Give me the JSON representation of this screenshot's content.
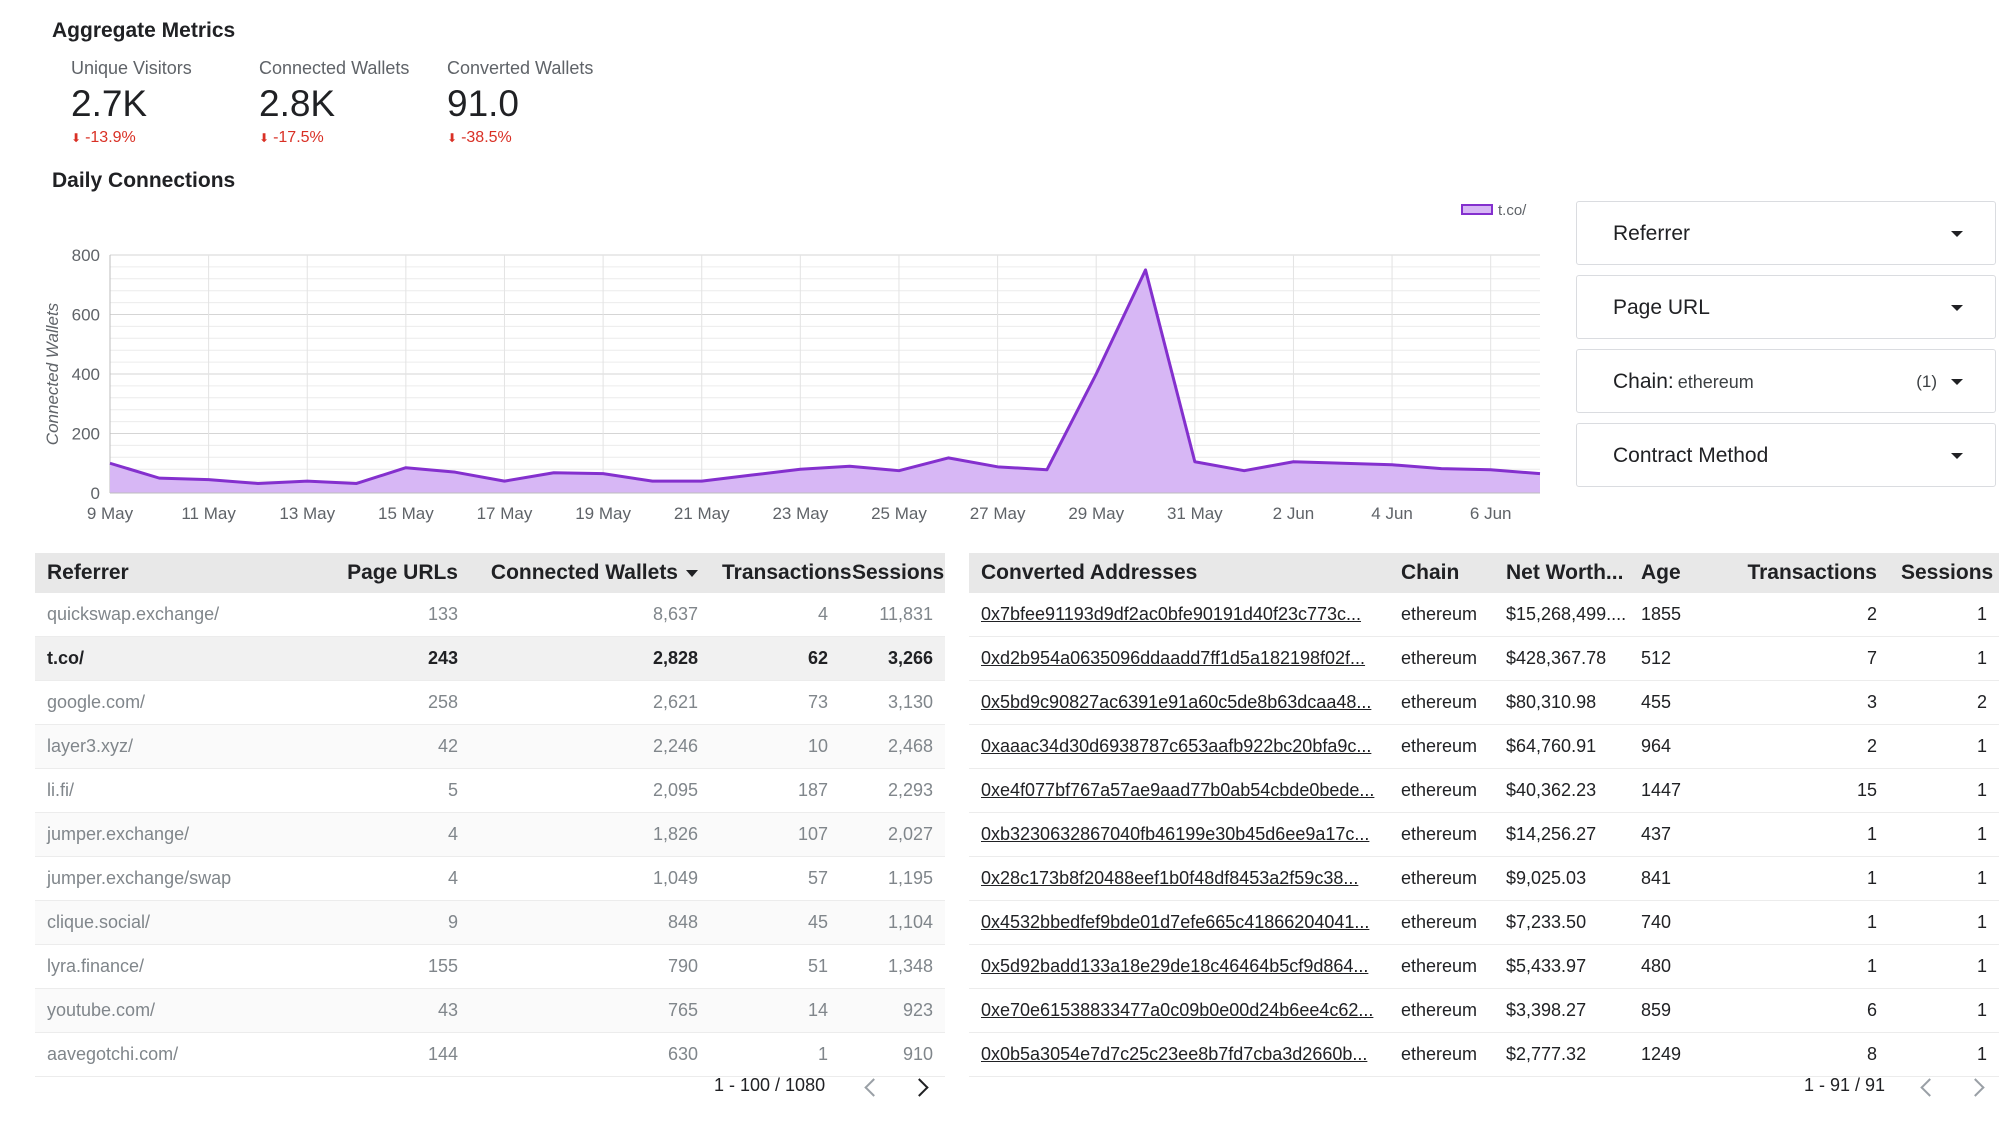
{
  "aggregate": {
    "title": "Aggregate Metrics",
    "metrics": [
      {
        "label": "Unique Visitors",
        "value": "2.7K",
        "delta": "-13.9%"
      },
      {
        "label": "Connected Wallets",
        "value": "2.8K",
        "delta": "-17.5%"
      },
      {
        "label": "Converted Wallets",
        "value": "91.0",
        "delta": "-38.5%"
      }
    ],
    "delta_icon": "arrow-down-icon",
    "delta_color": "#d93025"
  },
  "daily": {
    "title": "Daily Connections"
  },
  "chart_data": {
    "type": "area",
    "ylabel": "Connected Wallets",
    "xlabel": "",
    "ylim": [
      0,
      800
    ],
    "yticks": [
      "0",
      "200",
      "400",
      "600",
      "800"
    ],
    "xtick_labels": [
      "9 May",
      "11 May",
      "13 May",
      "15 May",
      "17 May",
      "19 May",
      "21 May",
      "23 May",
      "25 May",
      "27 May",
      "29 May",
      "31 May",
      "2 Jun",
      "4 Jun",
      "6 Jun"
    ],
    "grid": true,
    "legend_position": "top-right",
    "series": [
      {
        "name": "t.co/",
        "color": "#8430ce",
        "fill": "#d7b7f5",
        "x": [
          "9 May",
          "10 May",
          "11 May",
          "12 May",
          "13 May",
          "14 May",
          "15 May",
          "16 May",
          "17 May",
          "18 May",
          "19 May",
          "20 May",
          "21 May",
          "22 May",
          "23 May",
          "24 May",
          "25 May",
          "26 May",
          "27 May",
          "28 May",
          "29 May",
          "30 May",
          "31 May",
          "1 Jun",
          "2 Jun",
          "3 Jun",
          "4 Jun",
          "5 Jun",
          "6 Jun",
          "7 Jun"
        ],
        "values": [
          100,
          50,
          45,
          32,
          40,
          32,
          85,
          70,
          40,
          68,
          65,
          40,
          40,
          60,
          80,
          90,
          75,
          118,
          88,
          78,
          400,
          750,
          105,
          75,
          105,
          100,
          95,
          82,
          78,
          65
        ]
      }
    ]
  },
  "filters": [
    {
      "label": "Referrer",
      "value": "",
      "count": ""
    },
    {
      "label": "Page URL",
      "value": "",
      "count": ""
    },
    {
      "label": "Chain",
      "value": "ethereum",
      "count": "(1)"
    },
    {
      "label": "Contract Method",
      "value": "",
      "count": ""
    }
  ],
  "referrer_table": {
    "headers": [
      "Referrer",
      "Page URLs",
      "Connected Wallets",
      "Transactions",
      "Sessions"
    ],
    "sorted_column": "Connected Wallets",
    "rows": [
      [
        "quickswap.exchange/",
        "133",
        "8,637",
        "4",
        "11,831"
      ],
      [
        "t.co/",
        "243",
        "2,828",
        "62",
        "3,266"
      ],
      [
        "google.com/",
        "258",
        "2,621",
        "73",
        "3,130"
      ],
      [
        "layer3.xyz/",
        "42",
        "2,246",
        "10",
        "2,468"
      ],
      [
        "li.fi/",
        "5",
        "2,095",
        "187",
        "2,293"
      ],
      [
        "jumper.exchange/",
        "4",
        "1,826",
        "107",
        "2,027"
      ],
      [
        "jumper.exchange/swap",
        "4",
        "1,049",
        "57",
        "1,195"
      ],
      [
        "clique.social/",
        "9",
        "848",
        "45",
        "1,104"
      ],
      [
        "lyra.finance/",
        "155",
        "790",
        "51",
        "1,348"
      ],
      [
        "youtube.com/",
        "43",
        "765",
        "14",
        "923"
      ],
      [
        "aavegotchi.com/",
        "144",
        "630",
        "1",
        "910"
      ]
    ],
    "highlighted_row": 1,
    "pagination": "1 - 100 / 1080"
  },
  "converted_table": {
    "headers": [
      "Converted Addresses",
      "Chain",
      "Net Worth...",
      "Age",
      "Transactions",
      "Sessions"
    ],
    "rows": [
      [
        "0x7bfee91193d9df2ac0bfe90191d40f23c773c...",
        "ethereum",
        "$15,268,499....",
        "1855",
        "2",
        "1"
      ],
      [
        "0xd2b954a0635096ddaadd7ff1d5a182198f02f...",
        "ethereum",
        "$428,367.78",
        "512",
        "7",
        "1"
      ],
      [
        "0x5bd9c90827ac6391e91a60c5de8b63dcaa48...",
        "ethereum",
        "$80,310.98",
        "455",
        "3",
        "2"
      ],
      [
        "0xaaac34d30d6938787c653aafb922bc20bfa9c...",
        "ethereum",
        "$64,760.91",
        "964",
        "2",
        "1"
      ],
      [
        "0xe4f077bf767a57ae9aad77b0ab54cbde0bede...",
        "ethereum",
        "$40,362.23",
        "1447",
        "15",
        "1"
      ],
      [
        "0xb3230632867040fb46199e30b45d6ee9a17c...",
        "ethereum",
        "$14,256.27",
        "437",
        "1",
        "1"
      ],
      [
        "0x28c173b8f20488eef1b0f48df8453a2f59c38...",
        "ethereum",
        "$9,025.03",
        "841",
        "1",
        "1"
      ],
      [
        "0x4532bbedfef9bde01d7efe665c41866204041...",
        "ethereum",
        "$7,233.50",
        "740",
        "1",
        "1"
      ],
      [
        "0x5d92badd133a18e29de18c46464b5cf9d864...",
        "ethereum",
        "$5,433.97",
        "480",
        "1",
        "1"
      ],
      [
        "0xe70e61538833477a0c09b0e00d24b6ee4c62...",
        "ethereum",
        "$3,398.27",
        "859",
        "6",
        "1"
      ],
      [
        "0x0b5a3054e7d7c25c23ee8b7fd7cba3d2660b...",
        "ethereum",
        "$2,777.32",
        "1249",
        "8",
        "1"
      ]
    ],
    "pagination": "1 - 91 / 91"
  }
}
